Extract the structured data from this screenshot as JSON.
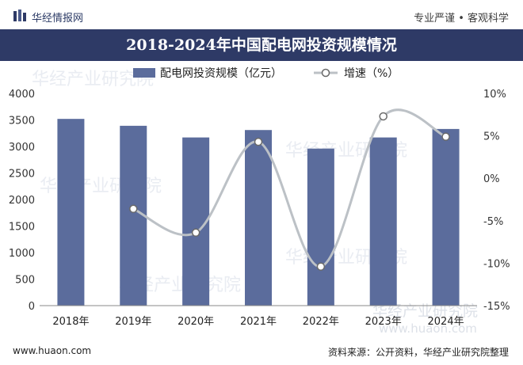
{
  "header": {
    "brand": "华经情报网",
    "slogan": "专业严谨 • 客观科学",
    "logo_icon": "huajing-logo-icon"
  },
  "title": "2018-2024年中国配电网投资规模情况",
  "footer": {
    "website": "www.huaon.com",
    "source": "资料来源：公开资料，华经产业研究院整理"
  },
  "watermark": {
    "text": "华经产业研究院",
    "url": "www.huaon.com"
  },
  "colors": {
    "title_band": "#2e3a66",
    "bar": "#5b6c9c",
    "line": "#bcc1c6",
    "marker_fill": "#ffffff",
    "marker_stroke": "#6a6a6a"
  },
  "chart_data": {
    "type": "bar",
    "categories": [
      "2018年",
      "2019年",
      "2020年",
      "2021年",
      "2022年",
      "2023年",
      "2024年"
    ],
    "series": [
      {
        "name": "配电网投资规模（亿元）",
        "type": "bar",
        "axis": "left",
        "values": [
          3520,
          3390,
          3170,
          3310,
          2960,
          3170,
          3330
        ]
      },
      {
        "name": "增速（%）",
        "type": "line",
        "smooth": true,
        "axis": "right",
        "values": [
          null,
          -3.6,
          -6.4,
          4.3,
          -10.4,
          7.3,
          4.9
        ]
      }
    ],
    "y_left": {
      "range": [
        0,
        4000
      ],
      "ticks": [
        "0",
        "500",
        "1000",
        "1500",
        "2000",
        "2500",
        "3000",
        "3500",
        "4000"
      ]
    },
    "y_right": {
      "range": [
        -15,
        10
      ],
      "ticks": [
        "-15%",
        "-10%",
        "-5%",
        "0%",
        "5%",
        "10%"
      ]
    },
    "legend": {
      "position": "top-left"
    },
    "grid": false
  }
}
